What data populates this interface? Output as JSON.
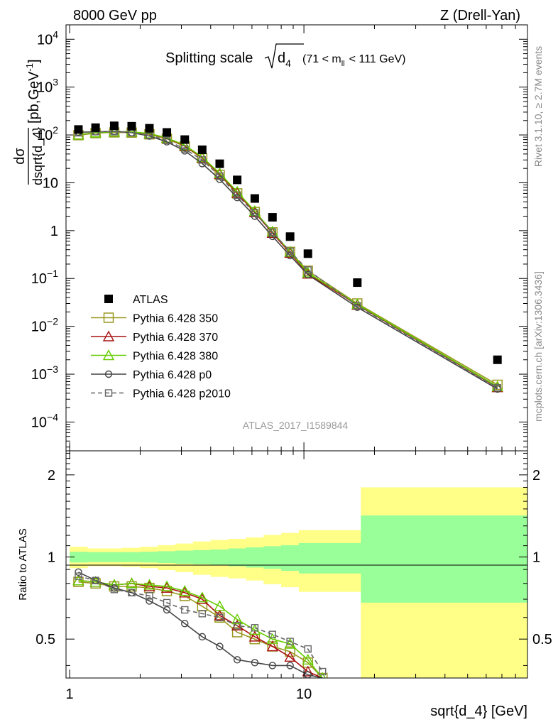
{
  "header": {
    "energy_label": "8000 GeV pp",
    "process_label": "Z (Drell-Yan)"
  },
  "side_text": {
    "rivet": "Rivet 3.1.10, ≥ 2.7M events",
    "mcplots": "mcplots.cern.ch [arXiv:1306.3436]"
  },
  "chart_data": [
    {
      "type": "scatter",
      "panel": "main",
      "title": "Splitting scale",
      "title_symbol": "d",
      "title_symbol_sub": "4",
      "title_range": "(71 < m",
      "title_range_sub": "ll",
      "title_range_end": "< 111 GeV)",
      "ylabel_num": "dσ",
      "ylabel_den": "dsqrt{d_4}",
      "ylabel_units": "[pb,GeV",
      "ylabel_units_exp": "-1",
      "ylabel_units_end": "]",
      "x_scale": "log",
      "y_scale": "log",
      "xlim": [
        0.965,
        90
      ],
      "ylim": [
        2.5e-05,
        20000
      ],
      "y_tick_labels": [
        {
          "v": 0.0001,
          "base": "10",
          "exp": "−4"
        },
        {
          "v": 0.001,
          "base": "10",
          "exp": "−3"
        },
        {
          "v": 0.01,
          "base": "10",
          "exp": "−2"
        },
        {
          "v": 0.1,
          "base": "10",
          "exp": "−1"
        },
        {
          "v": 1,
          "base": "1",
          "exp": ""
        },
        {
          "v": 10,
          "base": "10",
          "exp": ""
        },
        {
          "v": 100,
          "base": "10",
          "exp": "2"
        },
        {
          "v": 1000,
          "base": "10",
          "exp": "3"
        },
        {
          "v": 10000,
          "base": "10",
          "exp": "4"
        }
      ],
      "legend_position": "middle-left",
      "watermark": "ATLAS_2017_I1589844",
      "x": [
        1.09,
        1.29,
        1.55,
        1.84,
        2.19,
        2.6,
        3.1,
        3.68,
        4.37,
        5.19,
        6.17,
        7.34,
        8.73,
        10.4,
        16.9,
        67.0
      ],
      "series": [
        {
          "name": "ATLAS",
          "color": "#000000",
          "marker": "filled-square",
          "line": "none",
          "values": [
            130,
            142,
            155,
            152,
            138,
            113,
            80,
            49,
            25,
            11.5,
            4.7,
            1.9,
            0.75,
            0.33,
            0.082,
            0.002
          ]
        },
        {
          "name": "Pythia 6.428 350",
          "color": "#999922",
          "marker": "open-square",
          "line": "solid",
          "values": [
            99,
            109,
            113,
            112,
            103,
            83,
            58,
            32.5,
            14.6,
            6.0,
            2.45,
            0.92,
            0.36,
            0.145,
            0.03,
            0.0006
          ]
        },
        {
          "name": "Pythia 6.428 370",
          "color": "#aa1111",
          "marker": "open-triangle",
          "line": "solid",
          "values": [
            101,
            112,
            116,
            116,
            106,
            86,
            59.5,
            33.5,
            15.2,
            6.1,
            2.4,
            0.89,
            0.34,
            0.125,
            0.028,
            0.00053
          ]
        },
        {
          "name": "Pythia 6.428 380",
          "color": "#66cc00",
          "marker": "open-triangle",
          "line": "solid",
          "values": [
            101,
            112,
            116,
            116,
            107,
            87,
            61,
            34.5,
            15.8,
            6.5,
            2.55,
            0.95,
            0.36,
            0.132,
            0.029,
            0.00055
          ]
        },
        {
          "name": "Pythia 6.428 p0",
          "color": "#444444",
          "marker": "open-circle",
          "line": "solid",
          "values": [
            114,
            116,
            119,
            112,
            95,
            72,
            46.5,
            25.2,
            11.8,
            4.9,
            2.0,
            0.76,
            0.3,
            0.12,
            0.025,
            0.00049
          ]
        },
        {
          "name": "Pythia 6.428 p2010",
          "color": "#666666",
          "marker": "open-square-small",
          "line": "dashed",
          "values": [
            111,
            117,
            117,
            112,
            99,
            77,
            51,
            30,
            13.8,
            5.5,
            2.35,
            0.93,
            0.37,
            0.15,
            0.027,
            0.00052
          ]
        }
      ]
    },
    {
      "type": "line",
      "panel": "ratio",
      "ylabel": "Ratio to ATLAS",
      "xlabel": "sqrt{d_4} [GeV]",
      "x_scale": "log",
      "y_scale": "log",
      "xlim": [
        0.965,
        90
      ],
      "ylim": [
        0.36,
        2.45
      ],
      "x_tick_labels": [
        {
          "v": 1,
          "text": "1"
        },
        {
          "v": 10,
          "text": "10"
        }
      ],
      "y_tick_labels": [
        {
          "v": 0.5,
          "text": "0.5"
        },
        {
          "v": 1,
          "text": "1"
        },
        {
          "v": 2,
          "text": "2"
        }
      ],
      "bin_edges": [
        1.0,
        1.19,
        1.42,
        1.68,
        2.0,
        2.38,
        2.83,
        3.36,
        4.0,
        4.76,
        5.66,
        6.73,
        8.0,
        9.51,
        11.3,
        17.5,
        90
      ],
      "uncertainty_bands": [
        {
          "name": "stat",
          "color": "#99ff99",
          "lo": [
            0.955,
            0.958,
            0.958,
            0.958,
            0.955,
            0.95,
            0.945,
            0.94,
            0.935,
            0.925,
            0.915,
            0.905,
            0.89,
            0.87,
            0.87,
            0.68
          ],
          "hi": [
            1.045,
            1.042,
            1.042,
            1.042,
            1.045,
            1.05,
            1.055,
            1.06,
            1.065,
            1.075,
            1.085,
            1.095,
            1.105,
            1.125,
            1.125,
            1.42
          ]
        },
        {
          "name": "total",
          "color": "#ffff88",
          "lo": [
            0.91,
            0.925,
            0.925,
            0.92,
            0.91,
            0.895,
            0.88,
            0.86,
            0.845,
            0.835,
            0.82,
            0.795,
            0.775,
            0.745,
            0.745,
            0.36
          ],
          "hi": [
            1.09,
            1.075,
            1.075,
            1.08,
            1.09,
            1.105,
            1.12,
            1.14,
            1.155,
            1.165,
            1.18,
            1.205,
            1.225,
            1.255,
            1.255,
            1.8
          ]
        }
      ],
      "reference_line": 1,
      "x": [
        1.09,
        1.29,
        1.55,
        1.84,
        2.19,
        2.6,
        3.1,
        3.68,
        4.37,
        5.19,
        6.17,
        7.34,
        8.73,
        10.4,
        12.0
      ],
      "series": [
        {
          "name": "Pythia 6.428 350",
          "values": [
            0.81,
            0.8,
            0.78,
            0.78,
            0.77,
            0.75,
            0.72,
            0.66,
            0.6,
            0.53,
            0.5,
            0.47,
            0.45,
            0.41,
            0.36
          ]
        },
        {
          "name": "Pythia 6.428 370",
          "values": [
            0.82,
            0.81,
            0.79,
            0.8,
            0.78,
            0.77,
            0.74,
            0.7,
            0.61,
            0.56,
            0.51,
            0.47,
            0.43,
            0.38,
            0.33
          ]
        },
        {
          "name": "Pythia 6.428 380",
          "values": [
            0.82,
            0.81,
            0.79,
            0.8,
            0.79,
            0.78,
            0.75,
            0.71,
            0.66,
            0.59,
            0.54,
            0.5,
            0.48,
            0.42,
            0.36
          ]
        },
        {
          "name": "Pythia 6.428 p0",
          "values": [
            0.88,
            0.82,
            0.77,
            0.74,
            0.69,
            0.64,
            0.57,
            0.51,
            0.47,
            0.42,
            0.41,
            0.4,
            0.4,
            0.37,
            0.33
          ]
        },
        {
          "name": "Pythia 6.428 p2010",
          "values": [
            0.85,
            0.82,
            0.76,
            0.74,
            0.72,
            0.68,
            0.64,
            0.62,
            0.6,
            0.56,
            0.55,
            0.52,
            0.49,
            0.46,
            0.38
          ]
        }
      ]
    }
  ]
}
